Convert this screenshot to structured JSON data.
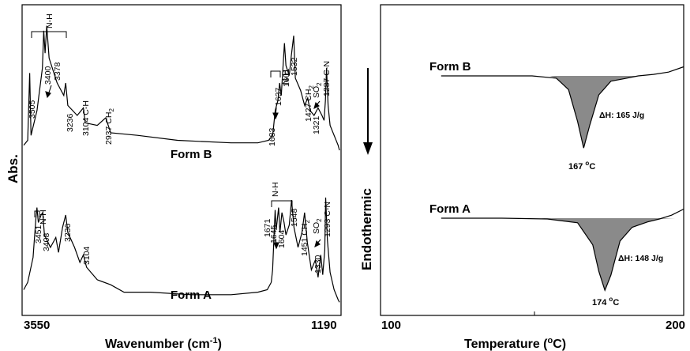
{
  "chart_data": [
    {
      "type": "line",
      "panel": "left",
      "xlabel": "Wavenumber (cm",
      "xlabel_sup": "-1",
      "xlabel_tail": ")",
      "ylabel": "Abs.",
      "x_ticks": [
        "3550",
        "1190"
      ],
      "xlim": [
        3550,
        1190
      ],
      "series": [
        {
          "name": "Form B",
          "x": [
            3550,
            3520,
            3505,
            3495,
            3450,
            3410,
            3400,
            3390,
            3378,
            3360,
            3300,
            3250,
            3236,
            3220,
            3150,
            3104,
            3090,
            3000,
            2937,
            2900,
            2700,
            2400,
            2000,
            1800,
            1720,
            1690,
            1683,
            1670,
            1650,
            1637,
            1625,
            1615,
            1601,
            1590,
            1565,
            1550,
            1532,
            1520,
            1480,
            1450,
            1427,
            1410,
            1380,
            1350,
            1321,
            1305,
            1295,
            1287,
            1275,
            1260,
            1230,
            1200,
            1190
          ],
          "y": [
            0.68,
            0.7,
            0.97,
            0.72,
            0.82,
            0.99,
            1.14,
            1.05,
            1.16,
            1.03,
            0.93,
            0.88,
            0.93,
            0.84,
            0.8,
            0.83,
            0.77,
            0.76,
            0.79,
            0.73,
            0.72,
            0.7,
            0.69,
            0.69,
            0.7,
            0.72,
            0.75,
            0.82,
            0.86,
            0.93,
            0.88,
            0.97,
            1.09,
            1.0,
            0.96,
            1.04,
            1.12,
            0.95,
            0.9,
            0.84,
            0.87,
            0.82,
            0.8,
            0.83,
            0.8,
            0.78,
            0.86,
            0.99,
            0.84,
            0.76,
            0.72,
            0.68,
            0.66
          ]
        },
        {
          "name": "Form A",
          "x": [
            3550,
            3520,
            3480,
            3460,
            3451,
            3440,
            3420,
            3408,
            3395,
            3350,
            3310,
            3290,
            3260,
            3236,
            3220,
            3170,
            3130,
            3104,
            3080,
            3000,
            2900,
            2800,
            2600,
            2300,
            2000,
            1800,
            1730,
            1700,
            1690,
            1680,
            1671,
            1663,
            1655,
            1645,
            1635,
            1620,
            1604,
            1590,
            1565,
            1548,
            1530,
            1500,
            1470,
            1451,
            1430,
            1400,
            1370,
            1350,
            1330,
            1315,
            1300,
            1293,
            1280,
            1260,
            1230,
            1200,
            1190
          ],
          "y": [
            0.1,
            0.13,
            0.23,
            0.38,
            0.43,
            0.37,
            0.4,
            0.41,
            0.32,
            0.27,
            0.31,
            0.25,
            0.35,
            0.4,
            0.33,
            0.27,
            0.21,
            0.24,
            0.19,
            0.14,
            0.12,
            0.09,
            0.09,
            0.08,
            0.08,
            0.09,
            0.1,
            0.13,
            0.18,
            0.3,
            0.42,
            0.34,
            0.38,
            0.43,
            0.33,
            0.41,
            0.37,
            0.32,
            0.36,
            0.46,
            0.35,
            0.27,
            0.33,
            0.41,
            0.29,
            0.18,
            0.22,
            0.15,
            0.24,
            0.16,
            0.26,
            0.47,
            0.3,
            0.17,
            0.1,
            0.06,
            0.05
          ]
        }
      ],
      "form_labels": [
        "Form B",
        "Form A"
      ],
      "peak_labels_B": [
        "3505",
        "3400",
        "3378",
        "3236",
        "3104 C-H",
        "2937 CH",
        "1683",
        "1637",
        "1601",
        "1532",
        "1427 CH",
        "SO",
        "1321",
        "1287 C-N"
      ],
      "peak_labels_A": [
        "3451",
        "3408",
        "3236",
        "3104",
        "1671",
        "1645",
        "1604",
        "1548",
        "1451 CH",
        "SO",
        "1330",
        "1293 C-N"
      ],
      "bracket_labels": [
        "N-H",
        "N-H",
        "N-H",
        "N-H"
      ],
      "subscript": "2"
    },
    {
      "type": "line",
      "panel": "right",
      "xlabel": "Temperature (",
      "xlabel_sup": "o",
      "xlabel_tail": "C)",
      "ylabel": "Endothermic",
      "x_ticks": [
        "100",
        "200"
      ],
      "xlim": [
        100,
        200
      ],
      "series": [
        {
          "name": "Form B",
          "x": [
            120,
            140,
            150,
            158,
            162,
            165,
            167,
            169,
            172,
            176,
            180,
            185,
            190,
            195,
            200
          ],
          "y": [
            0,
            0,
            0,
            0.3,
            1.8,
            6.0,
            9.5,
            6.5,
            2.5,
            0.7,
            0.4,
            0.0,
            -0.2,
            -0.5,
            -1.2
          ],
          "peak_label": "167 ",
          "enthalpy": "ΔH: 165 J/g"
        },
        {
          "name": "Form A",
          "x": [
            120,
            140,
            155,
            165,
            170,
            172,
            174,
            176,
            179,
            183,
            188,
            192,
            196,
            200
          ],
          "y": [
            0,
            0,
            0.1,
            0.6,
            3.5,
            7.0,
            9.5,
            7.5,
            3.0,
            1.2,
            0.5,
            0.1,
            -0.4,
            -1.2
          ],
          "peak_label": "174 ",
          "enthalpy": "ΔH: 148 J/g"
        }
      ],
      "peak_sup": "o",
      "peak_unit": "C"
    }
  ]
}
